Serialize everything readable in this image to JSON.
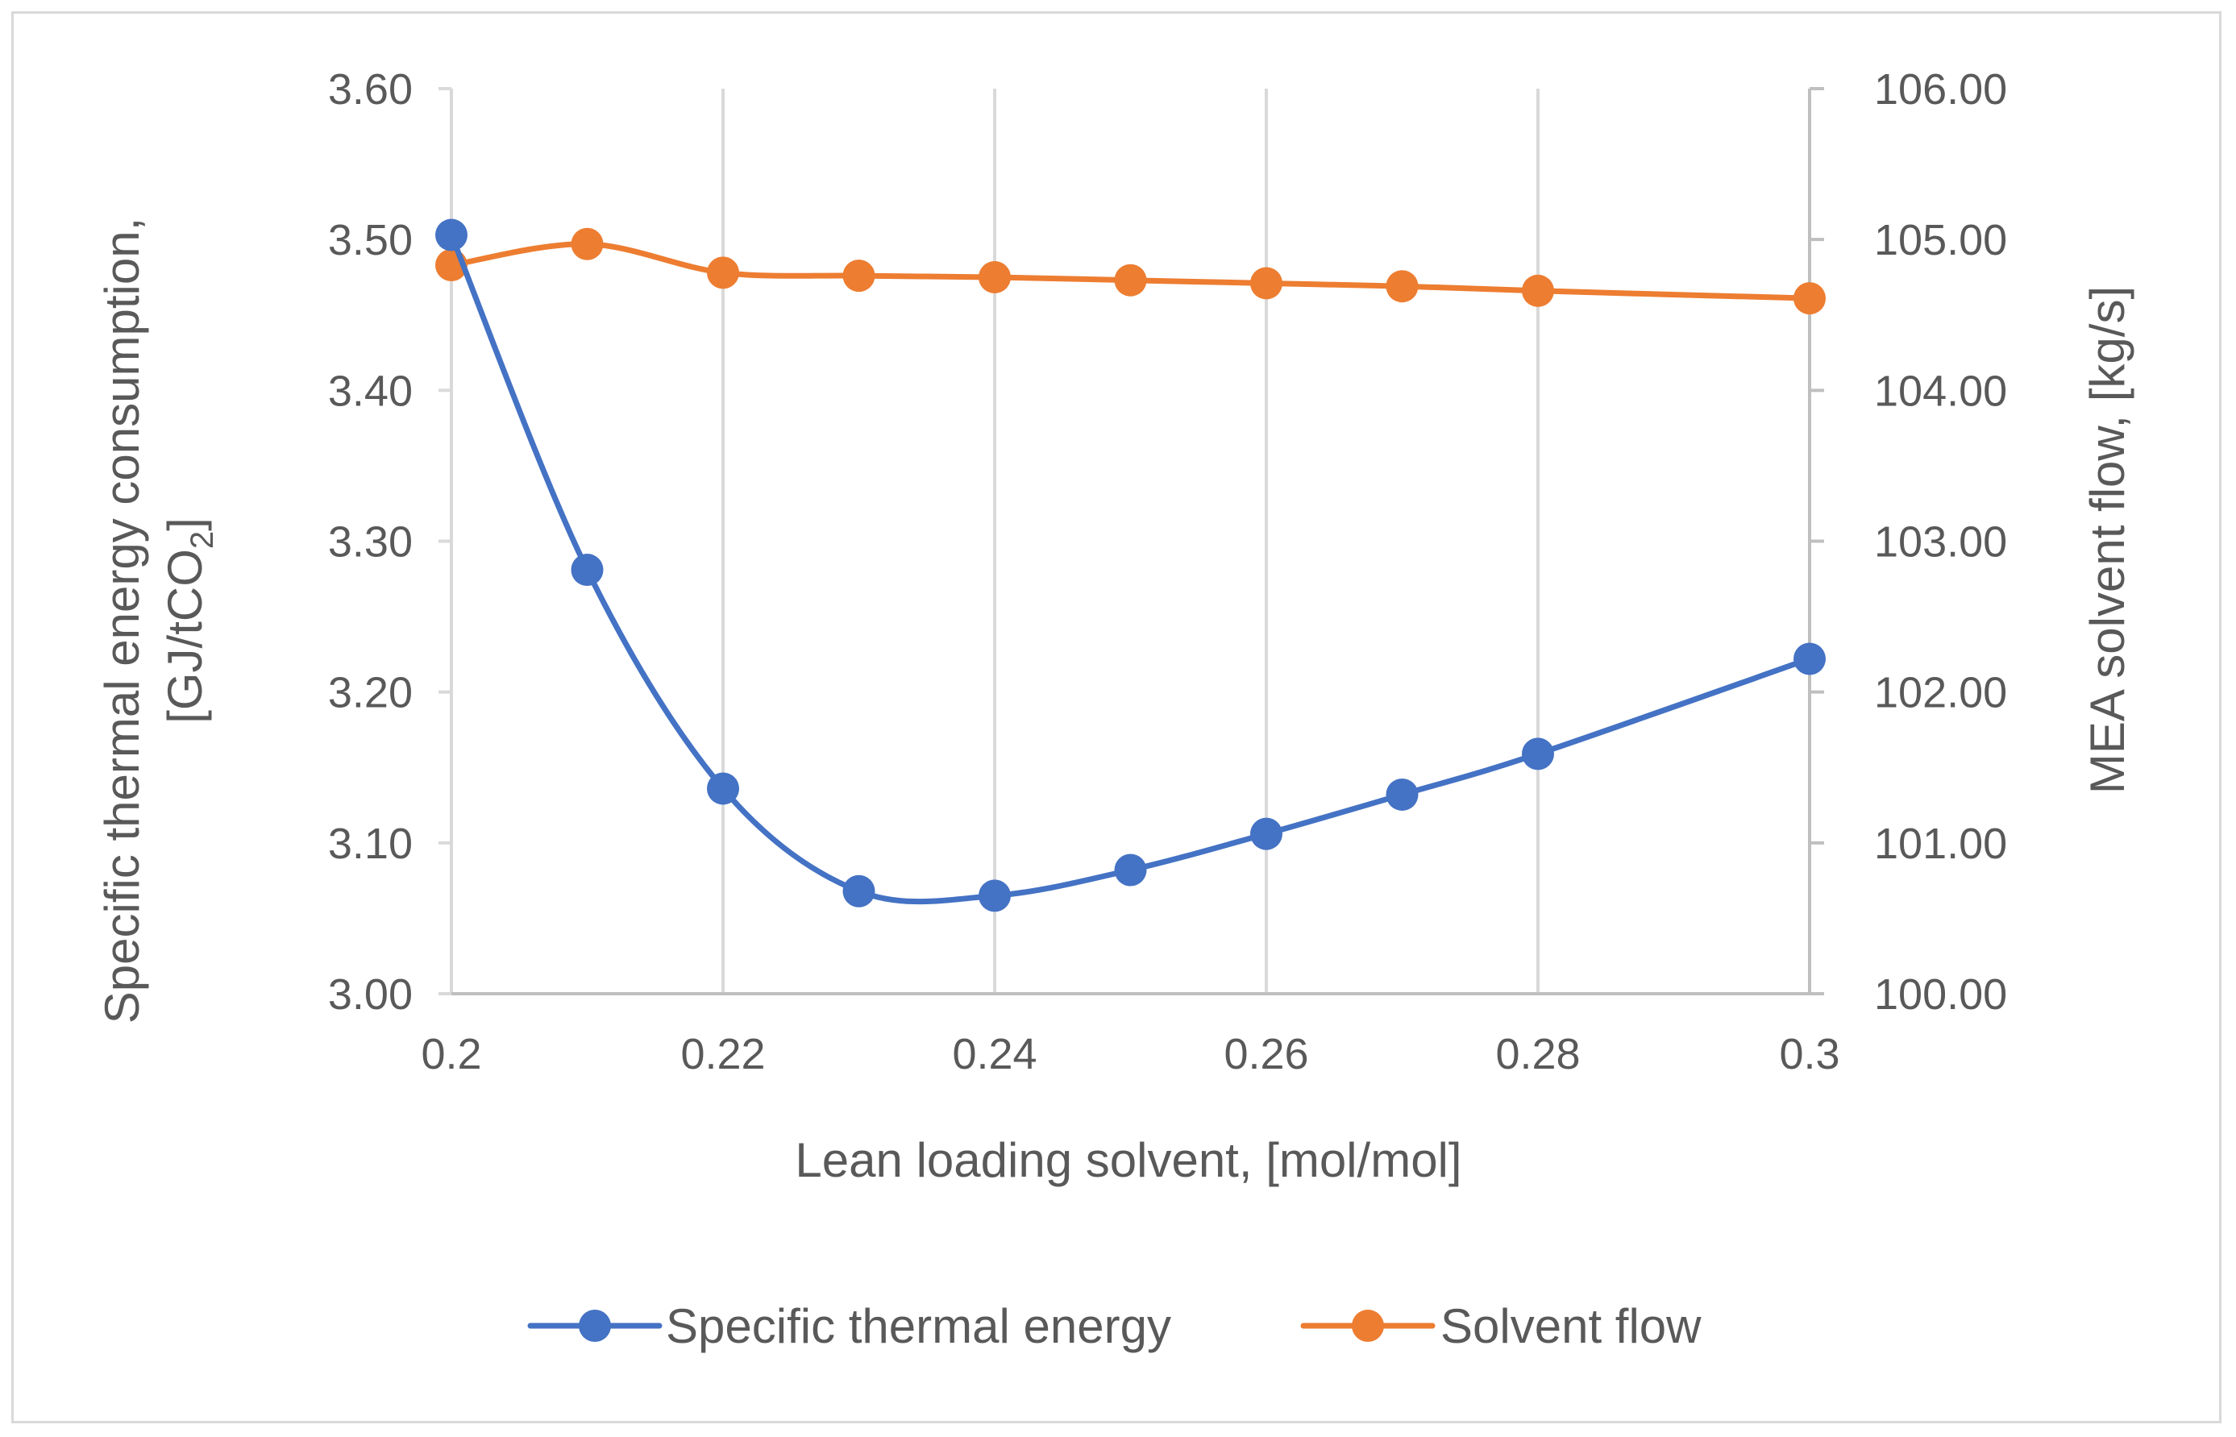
{
  "chart_data": {
    "type": "line",
    "title": "",
    "xlabel": "Lean loading solvent, [mol/mol]",
    "ylabel_left": {
      "line1": "Specific thermal energy consumption,",
      "line2_prefix": "[GJ/tCO",
      "line2_sub": "2",
      "line2_suffix": "]"
    },
    "ylabel_right": "MEA solvent flow, [kg/s]",
    "xlim": [
      0.2,
      0.3
    ],
    "ylim_left": [
      3.0,
      3.6
    ],
    "ylim_right": [
      100.0,
      106.0
    ],
    "x_ticks": [
      0.2,
      0.22,
      0.24,
      0.26,
      0.28,
      0.3
    ],
    "x_tick_labels": [
      "0.2",
      "0.22",
      "0.24",
      "0.26",
      "0.28",
      "0.3"
    ],
    "y_left_ticks": [
      3.0,
      3.1,
      3.2,
      3.3,
      3.4,
      3.5,
      3.6
    ],
    "y_left_tick_labels": [
      "3.00",
      "3.10",
      "3.20",
      "3.30",
      "3.40",
      "3.50",
      "3.60"
    ],
    "y_right_ticks": [
      100,
      101,
      102,
      103,
      104,
      105,
      106
    ],
    "y_right_tick_labels": [
      "100.00",
      "101.00",
      "102.00",
      "103.00",
      "104.00",
      "105.00",
      "106.00"
    ],
    "grid": "vertical",
    "legend_position": "bottom",
    "series": [
      {
        "name": "Specific thermal energy",
        "axis": "left",
        "color": "#4472c4",
        "x": [
          0.2,
          0.21,
          0.22,
          0.23,
          0.24,
          0.25,
          0.26,
          0.27,
          0.28,
          0.3
        ],
        "values": [
          3.503,
          3.281,
          3.136,
          3.068,
          3.065,
          3.082,
          3.106,
          3.132,
          3.159,
          3.222
        ]
      },
      {
        "name": "Solvent flow",
        "axis": "right",
        "color": "#ed7d31",
        "x": [
          0.2,
          0.21,
          0.22,
          0.23,
          0.24,
          0.25,
          0.26,
          0.27,
          0.28,
          0.3
        ],
        "values": [
          104.83,
          104.97,
          104.78,
          104.76,
          104.75,
          104.73,
          104.71,
          104.69,
          104.66,
          104.61
        ]
      }
    ]
  }
}
